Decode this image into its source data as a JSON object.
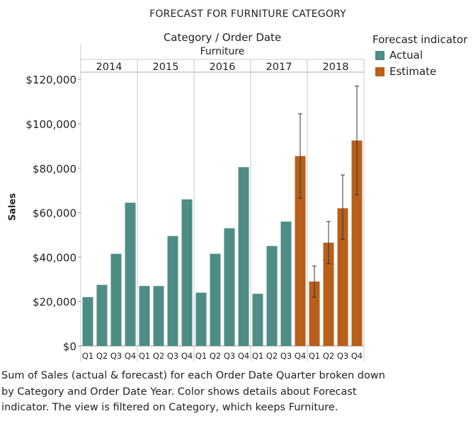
{
  "title": "FORECAST FOR FURNITURE CATEGORY",
  "header": {
    "column_label": "Category / Order Date",
    "category_value": "Furniture"
  },
  "legend": {
    "title": "Forecast indicator",
    "items": [
      {
        "label": "Actual",
        "color": "#4e8d86"
      },
      {
        "label": "Estimate",
        "color": "#b85f1c"
      }
    ]
  },
  "caption": "Sum of Sales (actual & forecast)  for each Order Date Quarter broken down by Category and Order Date Year.  Color shows details about Forecast indicator. The view is filtered on Category, which keeps Furniture.",
  "chart_data": {
    "type": "bar",
    "title": "FORECAST FOR FURNITURE CATEGORY",
    "ylabel": "Sales",
    "xlabel": "",
    "ylim": [
      0,
      123000
    ],
    "y_ticks": [
      "$0",
      "$20,000",
      "$40,000",
      "$60,000",
      "$80,000",
      "$100,000",
      "$120,000"
    ],
    "y_tick_values": [
      0,
      20000,
      40000,
      60000,
      80000,
      100000,
      120000
    ],
    "quarters": [
      "Q1",
      "Q2",
      "Q3",
      "Q4"
    ],
    "years": [
      {
        "year": "2014",
        "values": [
          22000,
          27500,
          41500,
          64500
        ],
        "indicator": [
          "Actual",
          "Actual",
          "Actual",
          "Actual"
        ]
      },
      {
        "year": "2015",
        "values": [
          27000,
          27000,
          49500,
          66000
        ],
        "indicator": [
          "Actual",
          "Actual",
          "Actual",
          "Actual"
        ]
      },
      {
        "year": "2016",
        "values": [
          24000,
          41500,
          53000,
          80500
        ],
        "indicator": [
          "Actual",
          "Actual",
          "Actual",
          "Actual"
        ]
      },
      {
        "year": "2017",
        "values": [
          23500,
          45000,
          56000,
          85500
        ],
        "indicator": [
          "Actual",
          "Actual",
          "Actual",
          "Estimate"
        ],
        "error_bars": [
          null,
          null,
          null,
          [
            66500,
            104500
          ]
        ]
      },
      {
        "year": "2018",
        "values": [
          29000,
          46500,
          62000,
          92500
        ],
        "indicator": [
          "Estimate",
          "Estimate",
          "Estimate",
          "Estimate"
        ],
        "error_bars": [
          [
            22000,
            36000
          ],
          [
            37000,
            56000
          ],
          [
            48000,
            77000
          ],
          [
            68000,
            117000
          ]
        ]
      }
    ],
    "grid": false,
    "legend_position": "right"
  }
}
